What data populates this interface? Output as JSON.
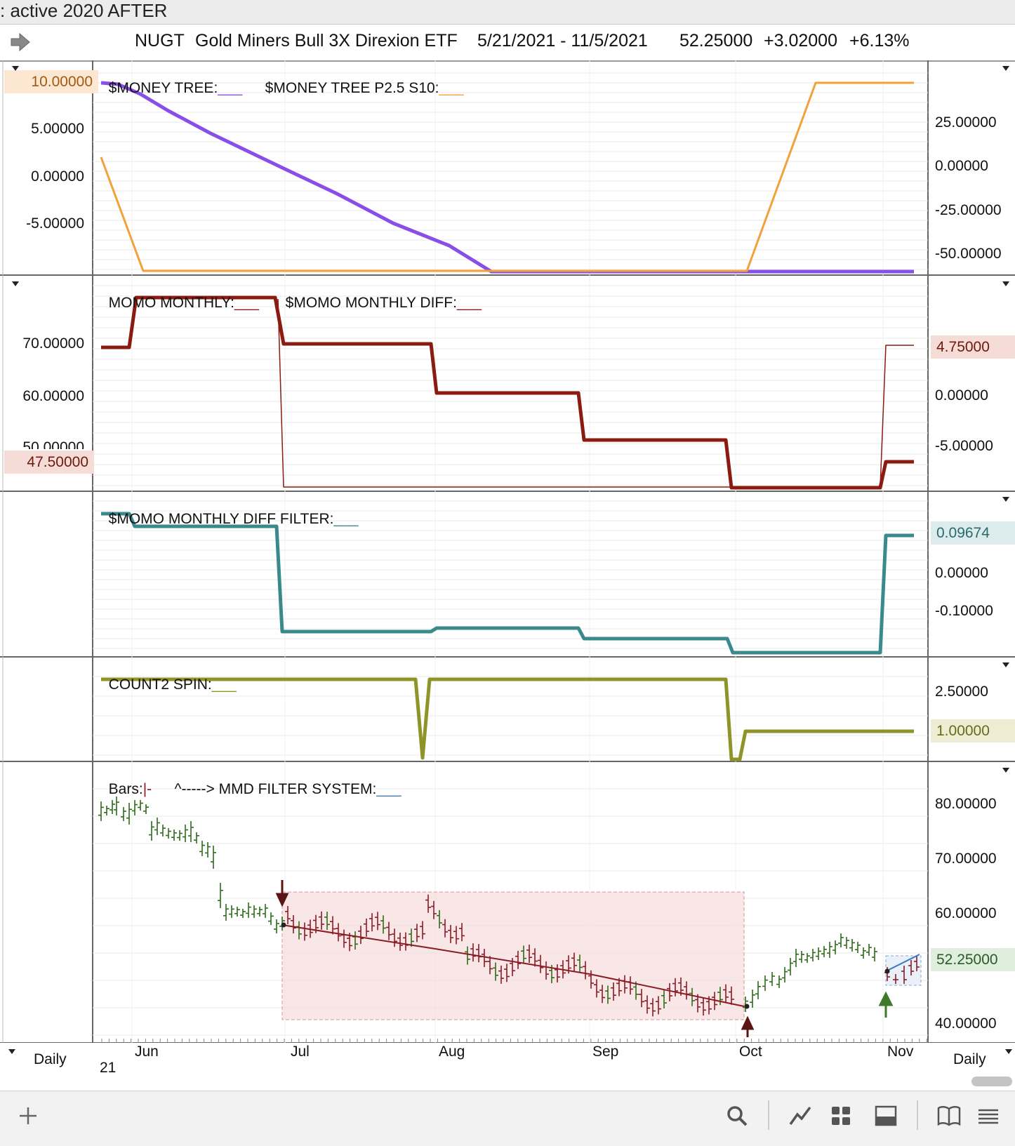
{
  "window": {
    "title": ": active 2020 AFTER"
  },
  "header": {
    "symbol": "NUGT",
    "name": "Gold Miners Bull 3X Direxion ETF",
    "date_range": "5/21/2021 - 11/5/2021",
    "price": "52.25000",
    "change": "+3.02000",
    "change_pct": "+6.13%"
  },
  "panels": {
    "money_tree": {
      "label1": "$MONEY TREE:",
      "label2": "$MONEY TREE P2.5 S10:",
      "left_ticks": [
        "5.00000",
        "0.00000",
        "-5.00000"
      ],
      "left_pill": "10.00000",
      "right_ticks": [
        "25.00000",
        "0.00000",
        "-25.00000",
        "-50.00000"
      ]
    },
    "momo": {
      "label1": "MOMO MONTHLY:",
      "label2": "$MOMO MONTHLY DIFF:",
      "left_ticks": [
        "70.00000",
        "60.00000",
        "50.00000"
      ],
      "left_pill": "47.50000",
      "right_ticks": [
        "0.00000",
        "-5.00000"
      ],
      "right_pill": "4.75000"
    },
    "diff_filter": {
      "label1": "$MOMO MONTHLY DIFF FILTER:",
      "right_ticks": [
        "0.00000",
        "-0.10000"
      ],
      "right_pill": "0.09674"
    },
    "count2": {
      "label1": "COUNT2 SPIN:",
      "right_ticks": [
        "2.50000"
      ],
      "right_pill": "1.00000"
    },
    "bars": {
      "label1": "Bars:",
      "label1_glyph": "|-",
      "label2": "^-----> MMD FILTER SYSTEM:",
      "right_ticks": [
        "80.00000",
        "70.00000",
        "60.00000",
        "40.00000"
      ],
      "right_pill": "52.25000"
    }
  },
  "xaxis": {
    "months": [
      "Jun",
      "Jul",
      "Aug",
      "Sep",
      "Oct",
      "Nov"
    ],
    "year": "21",
    "left_period": "Daily",
    "right_period": "Daily"
  },
  "colors": {
    "purple": "#8a4ee8",
    "orange": "#f3a13a",
    "maroon": "#8b1a10",
    "teal": "#3a8a8c",
    "olive": "#8f9428",
    "up_bar": "#2e6b1a",
    "down_bar": "#8b1a24",
    "blue": "#3a78c0"
  },
  "toolbar": {
    "icons": [
      "plus-icon",
      "search-icon",
      "line-chart-icon",
      "grid-icon",
      "layout-icon",
      "book-icon",
      "list-icon"
    ]
  }
}
